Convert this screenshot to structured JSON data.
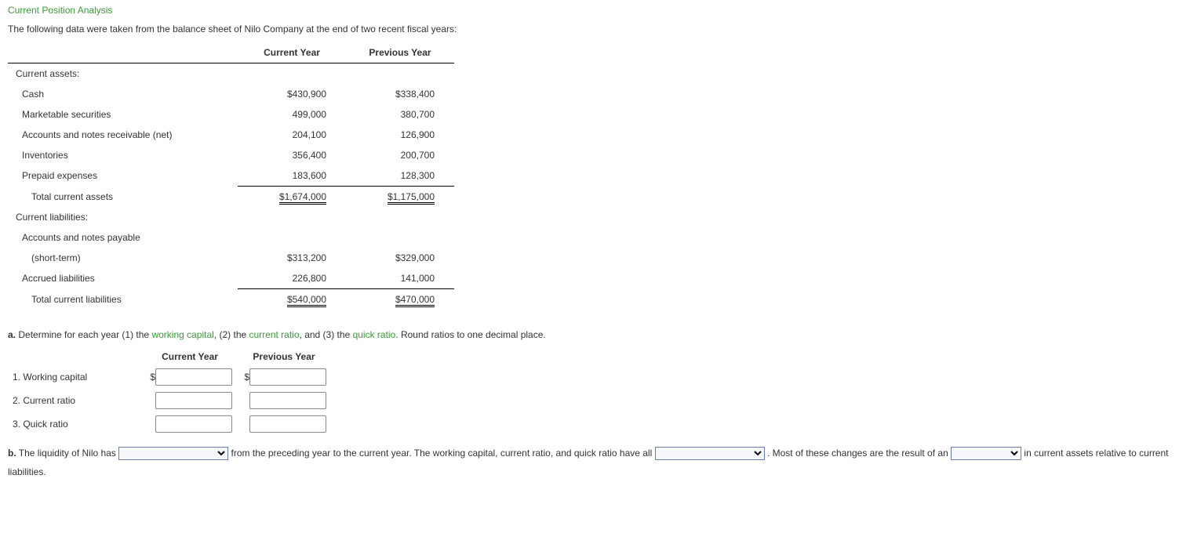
{
  "title": "Current Position Analysis",
  "intro": "The following data were taken from the balance sheet of Nilo Company at the end of two recent fiscal years:",
  "columns": {
    "current": "Current Year",
    "previous": "Previous Year"
  },
  "rows": {
    "current_assets_header": "Current assets:",
    "cash": {
      "label": "Cash",
      "cy": "$430,900",
      "py": "$338,400"
    },
    "marketable": {
      "label": "Marketable securities",
      "cy": "499,000",
      "py": "380,700"
    },
    "receivable": {
      "label": "Accounts and notes receivable (net)",
      "cy": "204,100",
      "py": "126,900"
    },
    "inventories": {
      "label": "Inventories",
      "cy": "356,400",
      "py": "200,700"
    },
    "prepaid": {
      "label": "Prepaid expenses",
      "cy": "183,600",
      "py": "128,300"
    },
    "total_assets": {
      "label": "Total current assets",
      "cy": "$1,674,000",
      "py": "$1,175,000"
    },
    "current_liab_header": "Current liabilities:",
    "payable_l1": "Accounts and notes payable",
    "payable": {
      "label": "(short-term)",
      "cy": "$313,200",
      "py": "$329,000"
    },
    "accrued": {
      "label": "Accrued liabilities",
      "cy": "226,800",
      "py": "141,000"
    },
    "total_liab": {
      "label": "Total current liabilities",
      "cy": "$540,000",
      "py": "$470,000"
    }
  },
  "part_a": {
    "lead": "a.",
    "text1": "Determine for each year (1) the ",
    "link1": "working capital",
    "text2": ", (2) the ",
    "link2": "current ratio",
    "text3": ", and (3) the ",
    "link3": "quick ratio",
    "text4": ". Round ratios to one decimal place."
  },
  "answers": {
    "r1": "1. Working capital",
    "r2": "2. Current ratio",
    "r3": "3.  Quick ratio"
  },
  "part_b": {
    "lead": "b.",
    "text1": "The liquidity of Nilo has ",
    "text2": " from the preceding year to the current year. The working capital, current ratio, and quick ratio have all ",
    "text3": " . Most of these changes are the result of an ",
    "text4": " in current assets relative to current liabilities."
  },
  "dollar_sign": "$"
}
